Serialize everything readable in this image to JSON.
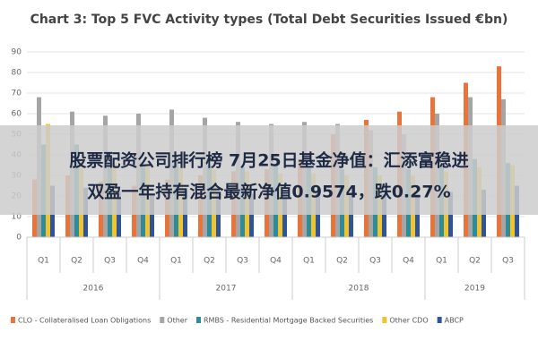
{
  "chart_data": {
    "type": "bar",
    "title": "Chart 3: Top 5 FVC Activity types (Total Debt Securities Issued €bn)",
    "categories": [
      "Q1",
      "Q2",
      "Q3",
      "Q4",
      "Q1",
      "Q2",
      "Q3",
      "Q4",
      "Q1",
      "Q2",
      "Q3",
      "Q4",
      "Q1",
      "Q2",
      "Q3"
    ],
    "groups": [
      {
        "label": "2016",
        "span": 4
      },
      {
        "label": "2017",
        "span": 4
      },
      {
        "label": "2018",
        "span": 4
      },
      {
        "label": "2019",
        "span": 3
      }
    ],
    "series": [
      {
        "name": "CLO - Collateralised Loan Obligations",
        "color": "#e8743b",
        "values": [
          28,
          30,
          27,
          25,
          28,
          30,
          32,
          33,
          38,
          50,
          57,
          61,
          68,
          75,
          83
        ]
      },
      {
        "name": "Other",
        "color": "#a5a5a5",
        "values": [
          68,
          61,
          59,
          60,
          62,
          58,
          56,
          55,
          56,
          55,
          52,
          50,
          60,
          68,
          67
        ]
      },
      {
        "name": "RMBS - Residential Mortgage Backed Securities",
        "color": "#2e8b9a",
        "values": [
          45,
          45,
          36,
          35,
          36,
          35,
          34,
          35,
          34,
          33,
          34,
          33,
          35,
          38,
          36
        ]
      },
      {
        "name": "Other CDO",
        "color": "#f0c330",
        "values": [
          55,
          38,
          36,
          35,
          34,
          33,
          32,
          31,
          31,
          30,
          30,
          30,
          32,
          34,
          35
        ]
      },
      {
        "name": "ABCP",
        "color": "#2f5597",
        "values": [
          25,
          24,
          22,
          21,
          23,
          22,
          21,
          22,
          22,
          21,
          21,
          21,
          22,
          23,
          25
        ]
      }
    ],
    "ylim": [
      0,
      90
    ],
    "yticks": [
      0,
      10,
      20,
      30,
      40,
      50,
      60,
      70,
      80,
      90
    ],
    "grid": true
  },
  "overlay": {
    "lines": [
      "股票配资公司排行榜 7月25日基金净值：汇添富稳进",
      "双盈一年持有混合最新净值0.9574，跌0.27%"
    ]
  }
}
